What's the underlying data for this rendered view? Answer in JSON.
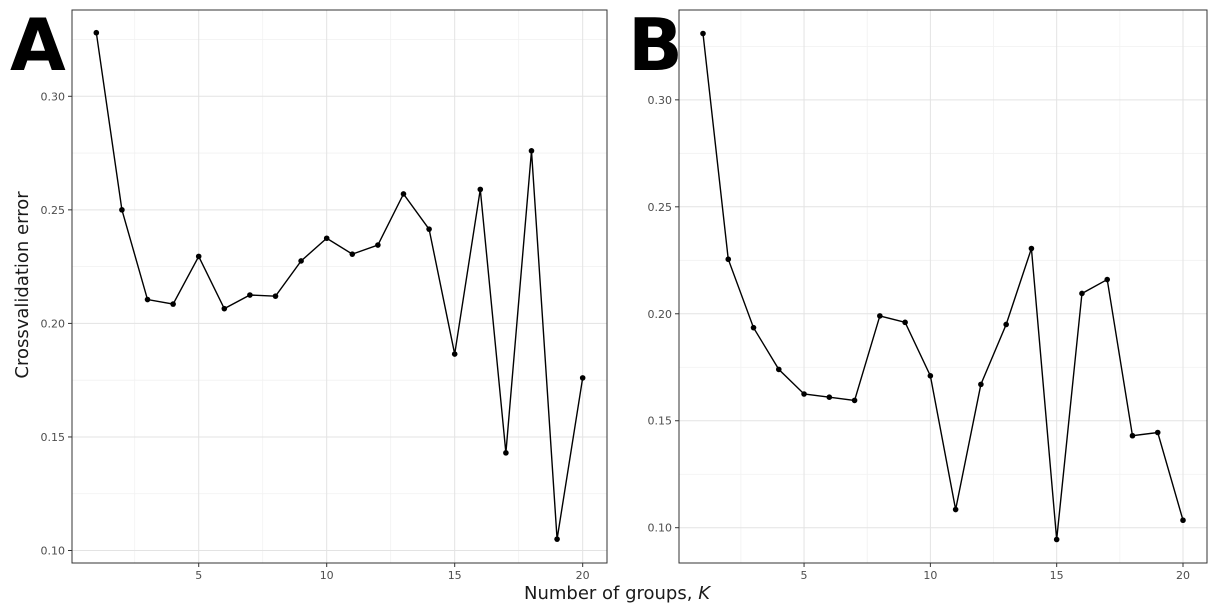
{
  "figure": {
    "xlabel": "Number of groups, K",
    "ylabel": "Crossvalidation error"
  },
  "chart_data": [
    {
      "type": "line",
      "panel_label": "A",
      "x": [
        1,
        2,
        3,
        4,
        5,
        6,
        7,
        8,
        9,
        10,
        11,
        12,
        13,
        14,
        15,
        16,
        17,
        18,
        19,
        20
      ],
      "series": [
        {
          "values": [
            0.328,
            0.25,
            0.2105,
            0.2085,
            0.2295,
            0.2065,
            0.2125,
            0.212,
            0.2275,
            0.2375,
            0.2305,
            0.2345,
            0.257,
            0.2415,
            0.1865,
            0.259,
            0.143,
            0.276,
            0.105,
            0.176
          ]
        }
      ],
      "xlim": [
        0.05,
        20.95
      ],
      "ylim": [
        0.0945,
        0.338
      ],
      "xticks": [
        5,
        10,
        15,
        20
      ],
      "yticks": [
        0.1,
        0.15,
        0.2,
        0.25,
        0.3
      ],
      "xtick_labels": [
        "5",
        "10",
        "15",
        "20"
      ],
      "ytick_labels": [
        "0.10",
        "0.15",
        "0.20",
        "0.25",
        "0.30"
      ],
      "grid": true
    },
    {
      "type": "line",
      "panel_label": "B",
      "x": [
        1,
        2,
        3,
        4,
        5,
        6,
        7,
        8,
        9,
        10,
        11,
        12,
        13,
        14,
        15,
        16,
        17,
        18,
        19,
        20
      ],
      "series": [
        {
          "values": [
            0.331,
            0.2255,
            0.1935,
            0.174,
            0.1625,
            0.161,
            0.1595,
            0.199,
            0.196,
            0.171,
            0.1085,
            0.167,
            0.195,
            0.2305,
            0.0945,
            0.2095,
            0.216,
            0.143,
            0.1445,
            0.1035
          ]
        }
      ],
      "xlim": [
        0.05,
        20.95
      ],
      "ylim": [
        0.0835,
        0.342
      ],
      "xticks": [
        5,
        10,
        15,
        20
      ],
      "yticks": [
        0.1,
        0.15,
        0.2,
        0.25,
        0.3
      ],
      "xtick_labels": [
        "5",
        "10",
        "15",
        "20"
      ],
      "ytick_labels": [
        "0.10",
        "0.15",
        "0.20",
        "0.25",
        "0.30"
      ],
      "grid": true
    }
  ]
}
